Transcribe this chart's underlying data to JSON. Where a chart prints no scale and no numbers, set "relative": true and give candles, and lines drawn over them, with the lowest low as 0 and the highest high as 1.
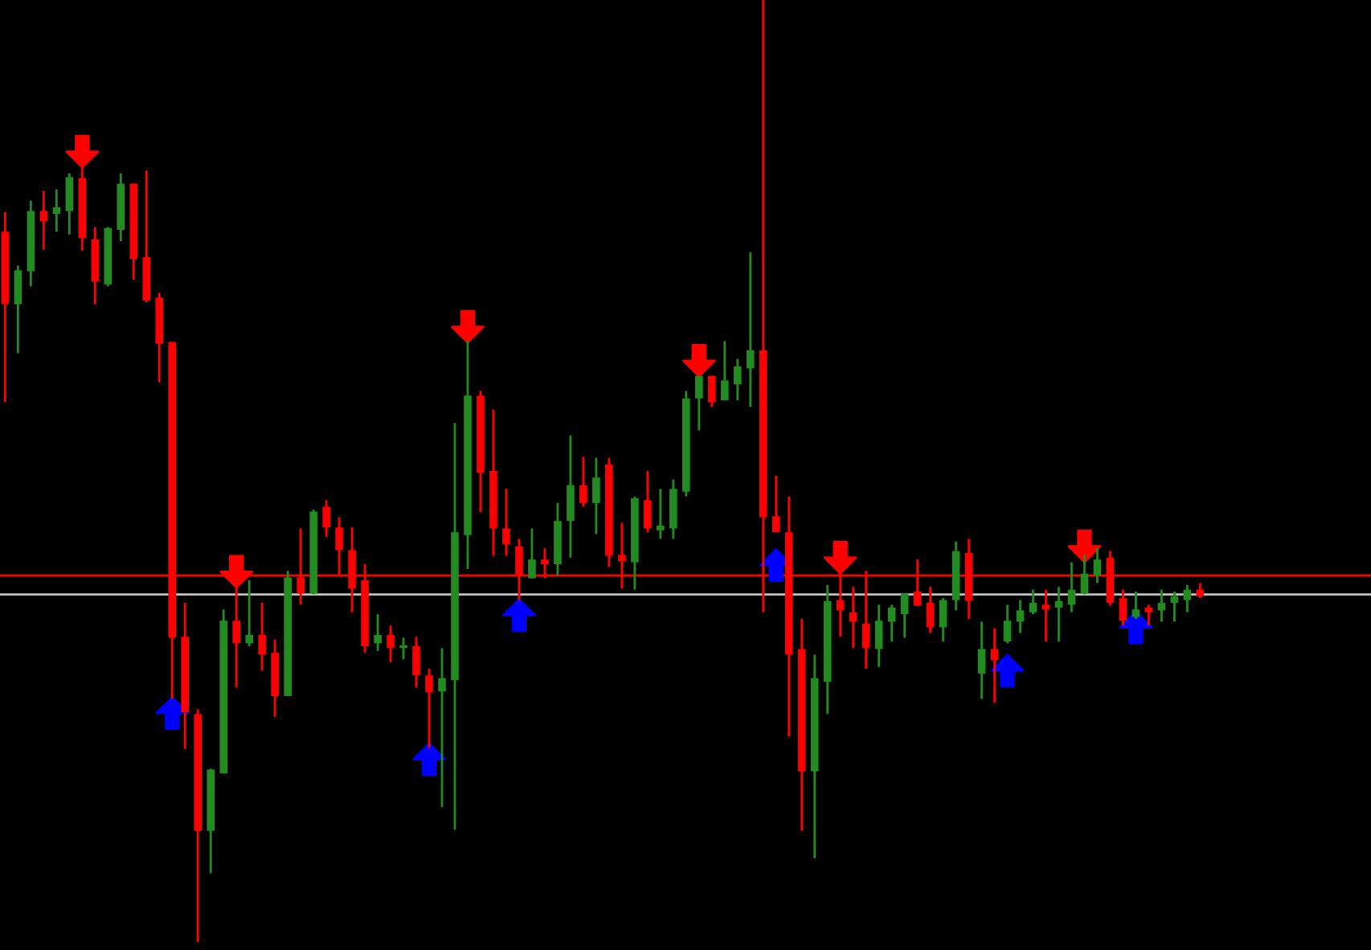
{
  "chart_data": {
    "type": "candlestick",
    "relative": true,
    "categories": [
      null,
      null,
      null,
      null,
      null,
      null,
      null,
      null,
      null,
      null,
      null,
      null,
      null,
      null,
      null,
      null,
      null,
      null,
      null,
      null,
      null,
      null,
      null,
      null,
      null,
      null,
      null,
      null,
      null,
      null,
      null,
      null,
      null,
      null,
      null,
      null,
      null,
      null,
      null,
      null,
      null,
      null,
      null,
      null,
      null,
      null,
      null,
      null,
      null,
      null,
      null,
      null,
      null,
      null,
      null,
      null,
      null,
      null,
      null,
      null,
      null,
      null,
      null,
      null,
      null,
      null,
      null,
      null,
      null,
      null,
      null,
      null,
      null,
      null,
      null,
      null,
      null,
      null,
      null,
      null,
      null,
      null,
      null,
      null,
      null,
      null,
      null,
      null,
      null,
      null,
      null,
      null,
      null,
      null
    ],
    "series": [
      {
        "type": "candlestick",
        "ohlc": [
          [
            0.754,
            0.775,
            0.573,
            0.677
          ],
          [
            0.677,
            0.718,
            0.625,
            0.713
          ],
          [
            0.712,
            0.787,
            0.696,
            0.776
          ],
          [
            0.776,
            0.797,
            0.735,
            0.765
          ],
          [
            0.773,
            0.799,
            0.754,
            0.78
          ],
          [
            0.776,
            0.816,
            0.751,
            0.812
          ],
          [
            0.811,
            0.824,
            0.734,
            0.747
          ],
          [
            0.746,
            0.759,
            0.677,
            0.701
          ],
          [
            0.698,
            0.759,
            0.696,
            0.758
          ],
          [
            0.756,
            0.816,
            0.744,
            0.805
          ],
          [
            0.805,
            0.805,
            0.703,
            0.725
          ],
          [
            0.727,
            0.819,
            0.679,
            0.681
          ],
          [
            0.684,
            0.689,
            0.594,
            0.635
          ],
          [
            0.637,
            0.637,
            0.258,
            0.323
          ],
          [
            0.324,
            0.36,
            0.205,
            0.244
          ],
          [
            0.242,
            0.247,
            0.0,
            0.118
          ],
          [
            0.118,
            0.184,
            0.073,
            0.183
          ],
          [
            0.179,
            0.353,
            0.179,
            0.341
          ],
          [
            0.341,
            0.377,
            0.27,
            0.317
          ],
          [
            0.317,
            0.384,
            0.314,
            0.326
          ],
          [
            0.326,
            0.36,
            0.288,
            0.305
          ],
          [
            0.307,
            0.321,
            0.239,
            0.261
          ],
          [
            0.261,
            0.394,
            0.261,
            0.387
          ],
          [
            0.387,
            0.439,
            0.358,
            0.37
          ],
          [
            0.37,
            0.459,
            0.369,
            0.457
          ],
          [
            0.462,
            0.469,
            0.43,
            0.44
          ],
          [
            0.44,
            0.451,
            0.389,
            0.416
          ],
          [
            0.416,
            0.44,
            0.35,
            0.375
          ],
          [
            0.384,
            0.401,
            0.307,
            0.314
          ],
          [
            0.317,
            0.348,
            0.309,
            0.326
          ],
          [
            0.326,
            0.336,
            0.297,
            0.312
          ],
          [
            0.312,
            0.323,
            0.3,
            0.314
          ],
          [
            0.314,
            0.324,
            0.27,
            0.283
          ],
          [
            0.283,
            0.29,
            0.206,
            0.265
          ],
          [
            0.266,
            0.312,
            0.143,
            0.28
          ],
          [
            0.278,
            0.551,
            0.119,
            0.435
          ],
          [
            0.432,
            0.638,
            0.396,
            0.58
          ],
          [
            0.58,
            0.585,
            0.456,
            0.498
          ],
          [
            0.5,
            0.565,
            0.41,
            0.439
          ],
          [
            0.439,
            0.481,
            0.41,
            0.422
          ],
          [
            0.42,
            0.428,
            0.363,
            0.389
          ],
          [
            0.386,
            0.439,
            0.386,
            0.406
          ],
          [
            0.406,
            0.418,
            0.386,
            0.401
          ],
          [
            0.401,
            0.466,
            0.389,
            0.447
          ],
          [
            0.447,
            0.538,
            0.408,
            0.485
          ],
          [
            0.485,
            0.515,
            0.462,
            0.466
          ],
          [
            0.466,
            0.514,
            0.433,
            0.493
          ],
          [
            0.507,
            0.514,
            0.398,
            0.41
          ],
          [
            0.411,
            0.445,
            0.375,
            0.404
          ],
          [
            0.403,
            0.473,
            0.374,
            0.471
          ],
          [
            0.469,
            0.5,
            0.435,
            0.439
          ],
          [
            0.437,
            0.481,
            0.428,
            0.442
          ],
          [
            0.439,
            0.491,
            0.428,
            0.481
          ],
          [
            0.478,
            0.585,
            0.473,
            0.577
          ],
          [
            0.577,
            0.601,
            0.543,
            0.601
          ],
          [
            0.601,
            0.601,
            0.568,
            0.573
          ],
          [
            0.575,
            0.638,
            0.575,
            0.596
          ],
          [
            0.592,
            0.619,
            0.575,
            0.611
          ],
          [
            0.609,
            0.732,
            0.568,
            0.628
          ],
          [
            0.628,
            1.0,
            0.35,
            0.451
          ],
          [
            0.452,
            0.495,
            0.435,
            0.435
          ],
          [
            0.435,
            0.473,
            0.218,
            0.305
          ],
          [
            0.311,
            0.343,
            0.118,
            0.181
          ],
          [
            0.181,
            0.305,
            0.089,
            0.28
          ],
          [
            0.276,
            0.379,
            0.242,
            0.362
          ],
          [
            0.363,
            0.391,
            0.324,
            0.352
          ],
          [
            0.35,
            0.377,
            0.312,
            0.34
          ],
          [
            0.338,
            0.394,
            0.29,
            0.312
          ],
          [
            0.311,
            0.358,
            0.292,
            0.341
          ],
          [
            0.34,
            0.358,
            0.319,
            0.355
          ],
          [
            0.348,
            0.37,
            0.323,
            0.37
          ],
          [
            0.372,
            0.406,
            0.357,
            0.357
          ],
          [
            0.36,
            0.377,
            0.328,
            0.334
          ],
          [
            0.334,
            0.365,
            0.319,
            0.363
          ],
          [
            0.363,
            0.425,
            0.352,
            0.415
          ],
          [
            0.413,
            0.428,
            0.343,
            0.362
          ],
          [
            0.285,
            0.34,
            0.258,
            0.311
          ],
          [
            0.311,
            0.333,
            0.254,
            0.299
          ],
          [
            0.319,
            0.358,
            0.317,
            0.341
          ],
          [
            0.34,
            0.363,
            0.328,
            0.352
          ],
          [
            0.35,
            0.374,
            0.348,
            0.36
          ],
          [
            0.358,
            0.374,
            0.319,
            0.353
          ],
          [
            0.355,
            0.377,
            0.319,
            0.362
          ],
          [
            0.358,
            0.403,
            0.35,
            0.374
          ],
          [
            0.37,
            0.411,
            0.369,
            0.391
          ],
          [
            0.389,
            0.418,
            0.381,
            0.406
          ],
          [
            0.408,
            0.415,
            0.357,
            0.36
          ],
          [
            0.365,
            0.374,
            0.336,
            0.341
          ],
          [
            0.345,
            0.372,
            0.343,
            0.353
          ],
          [
            0.355,
            0.358,
            0.336,
            0.35
          ],
          [
            0.352,
            0.374,
            0.34,
            0.36
          ],
          [
            0.36,
            0.372,
            0.34,
            0.367
          ],
          [
            0.363,
            0.379,
            0.35,
            0.374
          ],
          [
            0.374,
            0.381,
            0.365,
            0.367
          ]
        ],
        "colors": [
          "#ff0000",
          "#228b22",
          "#228b22",
          "#ff0000",
          "#228b22",
          "#228b22",
          "#ff0000",
          "#ff0000",
          "#228b22",
          "#228b22",
          "#ff0000",
          "#ff0000",
          "#ff0000",
          "#ff0000",
          "#ff0000",
          "#ff0000",
          "#228b22",
          "#228b22",
          "#ff0000",
          "#228b22",
          "#ff0000",
          "#ff0000",
          "#228b22",
          "#ff0000",
          "#228b22",
          "#ff0000",
          "#ff0000",
          "#ff0000",
          "#ff0000",
          "#228b22",
          "#ff0000",
          "#228b22",
          "#ff0000",
          "#ff0000",
          "#228b22",
          "#228b22",
          "#228b22",
          "#ff0000",
          "#ff0000",
          "#ff0000",
          "#ff0000",
          "#228b22",
          "#ff0000",
          "#228b22",
          "#228b22",
          "#ff0000",
          "#228b22",
          "#ff0000",
          "#ff0000",
          "#228b22",
          "#ff0000",
          "#228b22",
          "#228b22",
          "#228b22",
          "#228b22",
          "#ff0000",
          "#228b22",
          "#228b22",
          "#228b22",
          "#ff0000",
          "#ff0000",
          "#ff0000",
          "#ff0000",
          "#228b22",
          "#228b22",
          "#ff0000",
          "#ff0000",
          "#ff0000",
          "#228b22",
          "#228b22",
          "#228b22",
          "#ff0000",
          "#ff0000",
          "#228b22",
          "#228b22",
          "#ff0000",
          "#228b22",
          "#ff0000",
          "#228b22",
          "#228b22",
          "#228b22",
          "#ff0000",
          "#228b22",
          "#228b22",
          "#228b22",
          "#228b22",
          "#ff0000",
          "#ff0000",
          "#228b22",
          "#ff0000",
          "#228b22",
          "#228b22",
          "#228b22",
          "#ff0000"
        ]
      },
      {
        "type": "scatter",
        "color": "#ff0000",
        "values": [
          null,
          null,
          null,
          null,
          null,
          null,
          0.839,
          null,
          null,
          null,
          null,
          null,
          null,
          null,
          null,
          null,
          null,
          null,
          0.393,
          null,
          null,
          null,
          null,
          null,
          null,
          null,
          null,
          null,
          null,
          null,
          null,
          null,
          null,
          null,
          null,
          null,
          0.653,
          null,
          null,
          null,
          null,
          null,
          null,
          null,
          null,
          null,
          null,
          null,
          null,
          null,
          null,
          null,
          null,
          null,
          0.617,
          null,
          null,
          null,
          null,
          null,
          null,
          null,
          null,
          null,
          null,
          0.408,
          null,
          null,
          null,
          null,
          null,
          null,
          null,
          null,
          null,
          null,
          null,
          null,
          null,
          null,
          null,
          null,
          null,
          null,
          0.42,
          null,
          null,
          null,
          null,
          null,
          null,
          null,
          null,
          null
        ]
      },
      {
        "type": "scatter",
        "color": "#0000ff",
        "values": [
          null,
          null,
          null,
          null,
          null,
          null,
          null,
          null,
          null,
          null,
          null,
          null,
          null,
          0.243,
          null,
          null,
          null,
          null,
          null,
          null,
          null,
          null,
          null,
          null,
          null,
          null,
          null,
          null,
          null,
          null,
          null,
          null,
          null,
          0.194,
          null,
          null,
          null,
          null,
          null,
          null,
          0.347,
          null,
          null,
          null,
          null,
          null,
          null,
          null,
          null,
          null,
          null,
          null,
          null,
          null,
          null,
          null,
          null,
          null,
          null,
          null,
          0.4,
          null,
          null,
          null,
          null,
          null,
          null,
          null,
          null,
          null,
          null,
          null,
          null,
          null,
          null,
          null,
          null,
          null,
          0.288,
          null,
          null,
          null,
          null,
          null,
          null,
          null,
          null,
          null,
          0.334,
          null,
          null,
          null,
          null,
          null
        ]
      }
    ],
    "ref_lines": [
      {
        "axis": "y",
        "value": 0.389,
        "color": "#ff0000",
        "line_style": "solid"
      },
      {
        "axis": "y",
        "value": 0.369,
        "color": "#c0c0c0",
        "line_style": "solid"
      }
    ]
  }
}
